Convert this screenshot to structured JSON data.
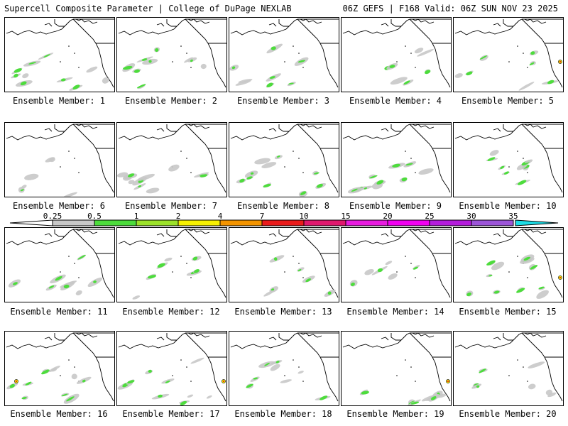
{
  "header": {
    "left": "Supercell Composite Parameter | College of DuPage NEXLAB",
    "right": "06Z GEFS | F168 Valid: 06Z SUN NOV 23 2025"
  },
  "colorbar": {
    "labels": [
      "0.25",
      "0.5",
      "1",
      "2",
      "4",
      "7",
      "10",
      "15",
      "20",
      "25",
      "30",
      "35"
    ],
    "colors": [
      "#c8c8c8",
      "#4ddc3c",
      "#9ce22a",
      "#f6f000",
      "#f39400",
      "#ea1c1c",
      "#e0186e",
      "#e81ce0",
      "#f000f0",
      "#b41cdc",
      "#9c55d8",
      "#1cdce6"
    ]
  },
  "members": [
    {
      "label": "Ensemble Member: 1"
    },
    {
      "label": "Ensemble Member: 2"
    },
    {
      "label": "Ensemble Member: 3"
    },
    {
      "label": "Ensemble Member: 4"
    },
    {
      "label": "Ensemble Member: 5"
    },
    {
      "label": "Ensemble Member: 6"
    },
    {
      "label": "Ensemble Member: 7"
    },
    {
      "label": "Ensemble Member: 8"
    },
    {
      "label": "Ensemble Member: 9"
    },
    {
      "label": "Ensemble Member: 10"
    },
    {
      "label": "Ensemble Member: 11"
    },
    {
      "label": "Ensemble Member: 12"
    },
    {
      "label": "Ensemble Member: 13"
    },
    {
      "label": "Ensemble Member: 14"
    },
    {
      "label": "Ensemble Member: 15"
    },
    {
      "label": "Ensemble Member: 16"
    },
    {
      "label": "Ensemble Member: 17"
    },
    {
      "label": "Ensemble Member: 18"
    },
    {
      "label": "Ensemble Member: 19"
    },
    {
      "label": "Ensemble Member: 20"
    }
  ]
}
